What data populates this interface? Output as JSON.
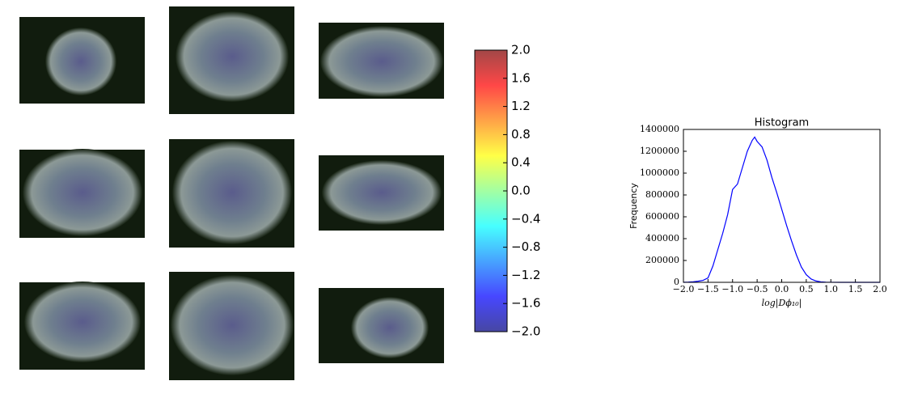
{
  "chart_data": [
    {
      "type": "colorbar",
      "colors": [
        "#00007f",
        "#0000ff",
        "#007fff",
        "#00ffff",
        "#7fff7f",
        "#ffff00",
        "#ff7f00",
        "#ff0000",
        "#7f0000"
      ],
      "ylim": [
        -2,
        2
      ],
      "yticks": [
        {
          "value": -2,
          "label": "−2.0"
        },
        {
          "value": -1.6,
          "label": "−1.6"
        },
        {
          "value": -1.2,
          "label": "−1.2"
        },
        {
          "value": -0.8,
          "label": "−0.8"
        },
        {
          "value": -0.4,
          "label": "−0.4"
        },
        {
          "value": 0,
          "label": "0.0"
        },
        {
          "value": 0.4,
          "label": "0.4"
        },
        {
          "value": 0.8,
          "label": "0.8"
        },
        {
          "value": 1.2,
          "label": "1.2"
        },
        {
          "value": 1.6,
          "label": "1.6"
        },
        {
          "value": 2,
          "label": "2.0"
        }
      ]
    },
    {
      "type": "line",
      "title": "Histogram",
      "xlabel": "log|Dϕ₁₀|",
      "ylabel": "Frequency",
      "color": "#0000ff",
      "x": [
        -2.0,
        -1.9,
        -1.8,
        -1.7,
        -1.6,
        -1.5,
        -1.4,
        -1.3,
        -1.2,
        -1.1,
        -1.0,
        -0.9,
        -0.8,
        -0.7,
        -0.6,
        -0.55,
        -0.5,
        -0.4,
        -0.3,
        -0.2,
        -0.1,
        0.0,
        0.1,
        0.2,
        0.3,
        0.4,
        0.5,
        0.6,
        0.7,
        0.8,
        0.9,
        1.0,
        1.2,
        1.5,
        2.0
      ],
      "values": [
        0,
        2000,
        5000,
        10000,
        18000,
        40000,
        150000,
        300000,
        450000,
        620000,
        850000,
        900000,
        1050000,
        1200000,
        1300000,
        1330000,
        1290000,
        1240000,
        1120000,
        960000,
        820000,
        670000,
        520000,
        380000,
        250000,
        140000,
        70000,
        30000,
        12000,
        4000,
        1500,
        500,
        0,
        0,
        0
      ],
      "xlim": [
        -2,
        2
      ],
      "xticks": [
        {
          "value": -2,
          "label": "−2.0"
        },
        {
          "value": -1.5,
          "label": "−1.5"
        },
        {
          "value": -1,
          "label": "−1.0"
        },
        {
          "value": -0.5,
          "label": "−0.5"
        },
        {
          "value": 0,
          "label": "0.0"
        },
        {
          "value": 0.5,
          "label": "0.5"
        },
        {
          "value": 1,
          "label": "1.0"
        },
        {
          "value": 1.5,
          "label": "1.5"
        },
        {
          "value": 2,
          "label": "2.0"
        }
      ],
      "ylim": [
        0,
        1400000
      ],
      "yticks": [
        0,
        200000,
        400000,
        600000,
        800000,
        1000000,
        1200000,
        1400000
      ]
    }
  ]
}
